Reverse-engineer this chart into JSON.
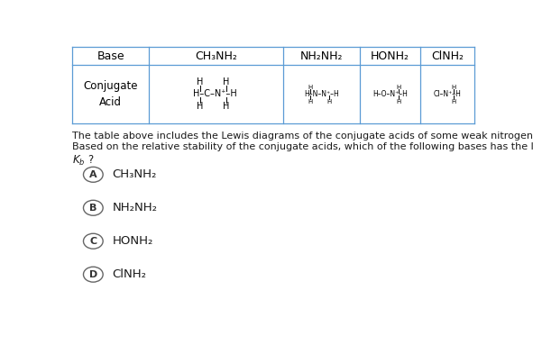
{
  "background_color": "#ffffff",
  "table": {
    "col_headers": [
      "Base",
      "CH₃NH₂",
      "NH₂NH₂",
      "HONH₂",
      "ClNH₂"
    ],
    "border_color": "#5b9bd5",
    "font_color": "#000000"
  },
  "question_line1": "The table above includes the Lewis diagrams of the conjugate acids of some weak nitrogenous bases.",
  "question_line2": "Based on the relative stability of the conjugate acids, which of the following bases has the largest value for",
  "question_line3": "$K_b$ ?",
  "choices": [
    {
      "label": "A",
      "text": "CH₃NH₂"
    },
    {
      "label": "B",
      "text": "NH₂NH₂"
    },
    {
      "label": "C",
      "text": "HONH₂"
    },
    {
      "label": "D",
      "text": "ClNH₂"
    }
  ],
  "font_size_choices": 9.5,
  "font_size_question": 8.0,
  "font_size_table_header": 9.0,
  "font_size_label": 8.5,
  "text_color": "#1a1a1a"
}
